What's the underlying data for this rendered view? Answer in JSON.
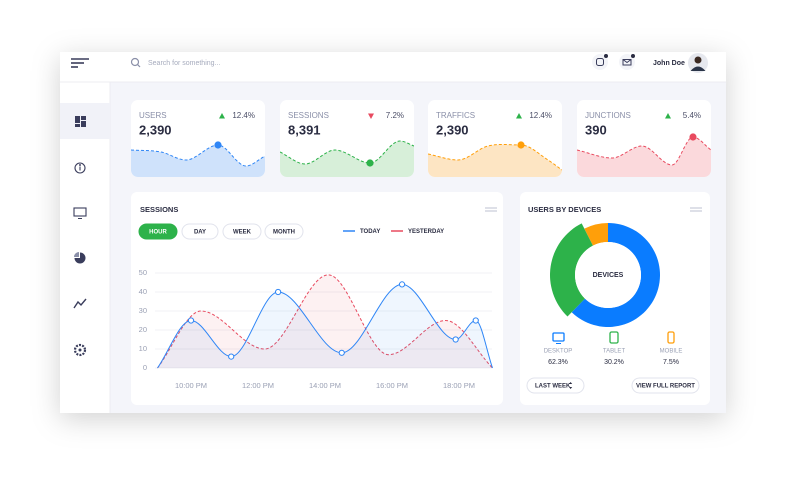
{
  "topbar": {
    "search_placeholder": "Search for something...",
    "user_name": "John Doe"
  },
  "cards": [
    {
      "label": "USERS",
      "value": "2,390",
      "change": "12.4%",
      "trend": "up",
      "color": "#2f86f6",
      "fill": "#cfe2fb"
    },
    {
      "label": "SESSIONS",
      "value": "8,391",
      "change": "7.2%",
      "trend": "down",
      "color": "#2db24a",
      "fill": "#d7efd9"
    },
    {
      "label": "TRAFFICS",
      "value": "2,390",
      "change": "12.4%",
      "trend": "up",
      "color": "#ff9f0a",
      "fill": "#fde5c3"
    },
    {
      "label": "JUNCTIONS",
      "value": "390",
      "change": "5.4%",
      "trend": "up",
      "color": "#e84a5f",
      "fill": "#fbd9dc"
    }
  ],
  "sessions_chart": {
    "type": "line",
    "title": "SESSIONS",
    "buttons": [
      "HOUR",
      "DAY",
      "WEEK",
      "MONTH"
    ],
    "active_button": 0,
    "series": [
      {
        "name": "TODAY",
        "color": "#2f86f6",
        "dashed": false,
        "markers": true,
        "x": [
          9,
          10,
          11.2,
          12.6,
          14.5,
          16.3,
          17.9,
          18.5,
          19
        ],
        "values": [
          0,
          25,
          6,
          40,
          8,
          44,
          15,
          25,
          0
        ]
      },
      {
        "name": "YESTERDAY",
        "color": "#e84a5f",
        "dashed": true,
        "markers": false,
        "x": [
          9,
          10.3,
          12.2,
          14.1,
          15.9,
          17.6,
          19
        ],
        "values": [
          0,
          30,
          10,
          49,
          7,
          25,
          0
        ]
      }
    ],
    "xlim": [
      9,
      19
    ],
    "xticks": [
      {
        "value": 10,
        "label": "10:00 PM"
      },
      {
        "value": 12,
        "label": "12:00 PM"
      },
      {
        "value": 14,
        "label": "14:00 PM"
      },
      {
        "value": 16,
        "label": "16:00 PM"
      },
      {
        "value": 18,
        "label": "18:00 PM"
      }
    ],
    "ylim": [
      0,
      50
    ],
    "yticks": [
      0,
      10,
      20,
      30,
      40,
      50
    ],
    "grid": true
  },
  "devices_chart": {
    "type": "pie",
    "title": "USERS BY DEVICES",
    "center_label": "DEVICES",
    "categories": [
      "DESKTOP",
      "TABLET",
      "MOBILE"
    ],
    "values": [
      62.3,
      30.2,
      7.5
    ],
    "value_labels": [
      "62.3%",
      "30.2%",
      "7.5%"
    ],
    "colors": [
      "#0a7cff",
      "#2db24a",
      "#ff9f0a"
    ],
    "exploded": 1
  },
  "footer": {
    "period_button": "LAST WEEK",
    "report_button": "VIEW FULL REPORT"
  }
}
